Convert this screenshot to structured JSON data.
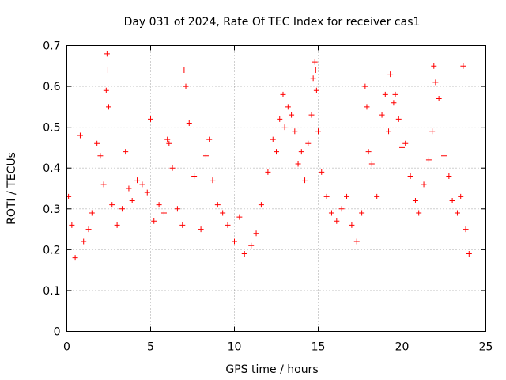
{
  "chart_data": {
    "type": "scatter",
    "title": "Day 031 of 2024, Rate Of TEC Index for receiver cas1",
    "xlabel": "GPS time / hours",
    "ylabel": "ROTI / TECUs",
    "xlim": [
      0,
      25
    ],
    "ylim": [
      0,
      0.7
    ],
    "xticks": [
      0,
      5,
      10,
      15,
      20,
      25
    ],
    "xtick_labels": [
      "0",
      "5",
      "10",
      "15",
      "20",
      "25"
    ],
    "yticks": [
      0,
      0.1,
      0.2,
      0.3,
      0.4,
      0.5,
      0.6,
      0.7
    ],
    "ytick_labels": [
      "0",
      "0.1",
      "0.2",
      "0.3",
      "0.4",
      "0.5",
      "0.6",
      "0.7"
    ],
    "grid": true,
    "marker": "+",
    "color": "#ff0000",
    "series": [
      {
        "name": "ROTI",
        "x": [
          0.1,
          0.3,
          0.5,
          0.8,
          1.0,
          1.3,
          1.5,
          1.8,
          2.0,
          2.2,
          2.35,
          2.4,
          2.45,
          2.5,
          2.7,
          3.0,
          3.3,
          3.5,
          3.7,
          3.9,
          4.2,
          4.5,
          4.8,
          5.0,
          5.2,
          5.5,
          5.8,
          6.0,
          6.1,
          6.3,
          6.6,
          6.9,
          7.0,
          7.1,
          7.3,
          7.6,
          8.0,
          8.3,
          8.5,
          8.7,
          9.0,
          9.3,
          9.6,
          10.0,
          10.3,
          10.6,
          11.0,
          11.3,
          11.6,
          12.0,
          12.3,
          12.5,
          12.7,
          12.9,
          13.0,
          13.2,
          13.4,
          13.6,
          13.8,
          14.0,
          14.2,
          14.4,
          14.6,
          14.7,
          14.8,
          14.85,
          14.9,
          15.0,
          15.2,
          15.5,
          15.8,
          16.1,
          16.4,
          16.7,
          17.0,
          17.3,
          17.6,
          17.8,
          17.9,
          18.0,
          18.2,
          18.5,
          18.8,
          19.0,
          19.2,
          19.3,
          19.5,
          19.6,
          19.8,
          20.0,
          20.2,
          20.5,
          20.8,
          21.0,
          21.3,
          21.6,
          21.8,
          21.9,
          22.0,
          22.2,
          22.5,
          22.8,
          23.0,
          23.3,
          23.5,
          23.65,
          23.8,
          24.0
        ],
        "y": [
          0.33,
          0.26,
          0.18,
          0.48,
          0.22,
          0.25,
          0.29,
          0.46,
          0.43,
          0.36,
          0.59,
          0.68,
          0.64,
          0.55,
          0.31,
          0.26,
          0.3,
          0.44,
          0.35,
          0.32,
          0.37,
          0.36,
          0.34,
          0.52,
          0.27,
          0.31,
          0.29,
          0.47,
          0.46,
          0.4,
          0.3,
          0.26,
          0.64,
          0.6,
          0.51,
          0.38,
          0.25,
          0.43,
          0.47,
          0.37,
          0.31,
          0.29,
          0.26,
          0.22,
          0.28,
          0.19,
          0.21,
          0.24,
          0.31,
          0.39,
          0.47,
          0.44,
          0.52,
          0.58,
          0.5,
          0.55,
          0.53,
          0.49,
          0.41,
          0.44,
          0.37,
          0.46,
          0.53,
          0.62,
          0.66,
          0.64,
          0.59,
          0.49,
          0.39,
          0.33,
          0.29,
          0.27,
          0.3,
          0.33,
          0.26,
          0.22,
          0.29,
          0.6,
          0.55,
          0.44,
          0.41,
          0.33,
          0.53,
          0.58,
          0.49,
          0.63,
          0.56,
          0.58,
          0.52,
          0.45,
          0.46,
          0.38,
          0.32,
          0.29,
          0.36,
          0.42,
          0.49,
          0.65,
          0.61,
          0.57,
          0.43,
          0.38,
          0.32,
          0.29,
          0.33,
          0.65,
          0.25,
          0.19
        ]
      }
    ]
  }
}
